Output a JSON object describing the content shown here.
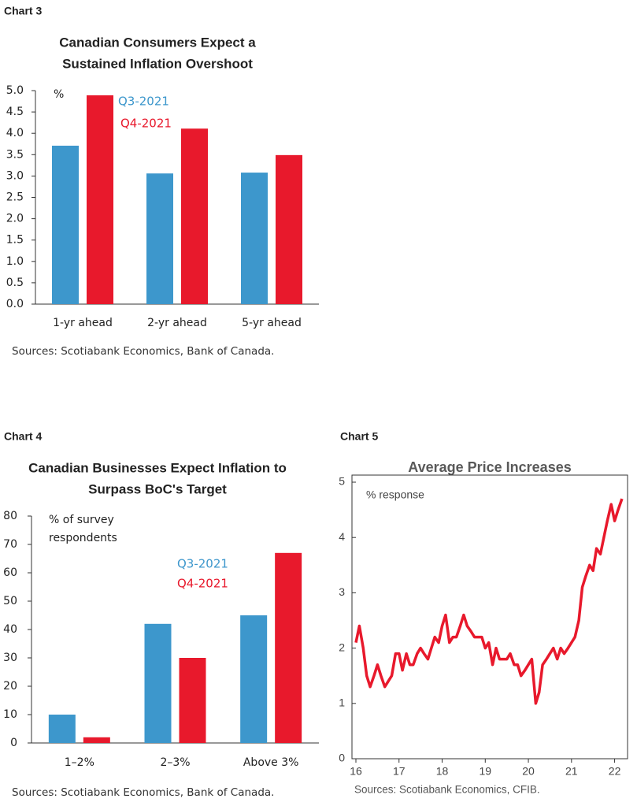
{
  "chart_data": [
    {
      "type": "bar",
      "label": "Chart 3",
      "title": [
        "Canadian Consumers Expect a",
        "Sustained Inflation Overshoot"
      ],
      "ylabel": [
        "%"
      ],
      "categories": [
        "1-yr ahead",
        "2-yr ahead",
        "5-yr ahead"
      ],
      "series": [
        {
          "name": "Q3-2021",
          "color": "#3d97cc",
          "values": [
            3.71,
            3.06,
            3.08
          ]
        },
        {
          "name": "Q4-2021",
          "color": "#e8192c",
          "values": [
            4.89,
            4.11,
            3.49
          ]
        }
      ],
      "ylim": [
        0,
        5
      ],
      "yticks": [
        {
          "value": 0,
          "label": "0.0"
        },
        0.5,
        {
          "value": 1,
          "label": "1.0"
        },
        1.5,
        {
          "value": 2,
          "label": "2.0"
        },
        2.5,
        {
          "value": 3,
          "label": "3.0"
        },
        3.5,
        {
          "value": 4,
          "label": "4.0"
        },
        4.5,
        {
          "value": 5,
          "label": "5.0"
        }
      ],
      "source": "Sources: Scotiabank Economics, Bank of Canada."
    },
    {
      "type": "bar",
      "label": "Chart 4",
      "title": [
        "Canadian Businesses Expect Inflation to",
        "Surpass BoC's Target"
      ],
      "ylabel": [
        "% of survey",
        "respondents"
      ],
      "categories": [
        "1–2%",
        "2–3%",
        "Above 3%"
      ],
      "series": [
        {
          "name": "Q3-2021",
          "color": "#3d97cc",
          "values": [
            10,
            42,
            45
          ]
        },
        {
          "name": "Q4-2021",
          "color": "#e8192c",
          "values": [
            2,
            30,
            67
          ]
        }
      ],
      "ylim": [
        0,
        80
      ],
      "yticks": [
        0,
        10,
        20,
        30,
        40,
        50,
        60,
        70,
        80
      ],
      "source": "Sources: Scotiabank Economics, Bank of Canada."
    },
    {
      "type": "line",
      "label": "Chart 5",
      "title": [
        "Average Price Increases"
      ],
      "ylabel": [
        "% response"
      ],
      "x": [
        16.0,
        16.08,
        16.17,
        16.25,
        16.33,
        16.42,
        16.5,
        16.58,
        16.67,
        16.75,
        16.83,
        16.92,
        17.0,
        17.08,
        17.17,
        17.25,
        17.33,
        17.42,
        17.5,
        17.58,
        17.67,
        17.75,
        17.83,
        17.92,
        18.0,
        18.08,
        18.17,
        18.25,
        18.33,
        18.42,
        18.5,
        18.58,
        18.67,
        18.75,
        18.83,
        18.92,
        19.0,
        19.08,
        19.17,
        19.25,
        19.33,
        19.42,
        19.5,
        19.58,
        19.67,
        19.75,
        19.83,
        19.92,
        20.0,
        20.08,
        20.17,
        20.25,
        20.33,
        20.42,
        20.5,
        20.58,
        20.67,
        20.75,
        20.83,
        20.92,
        21.0,
        21.08,
        21.17,
        21.25,
        21.33,
        21.42,
        21.5,
        21.58,
        21.67,
        21.75,
        21.83,
        21.92,
        22.0,
        22.08,
        22.17
      ],
      "series": [
        {
          "name": "Average price increases",
          "color": "#e8192c",
          "values": [
            2.1,
            2.4,
            2.0,
            1.5,
            1.3,
            1.5,
            1.7,
            1.5,
            1.3,
            1.4,
            1.5,
            1.9,
            1.9,
            1.6,
            1.9,
            1.7,
            1.7,
            1.9,
            2.0,
            1.9,
            1.8,
            2.0,
            2.2,
            2.1,
            2.4,
            2.6,
            2.1,
            2.2,
            2.2,
            2.4,
            2.6,
            2.4,
            2.3,
            2.2,
            2.2,
            2.2,
            2.0,
            2.1,
            1.7,
            2.0,
            1.8,
            1.8,
            1.8,
            1.9,
            1.7,
            1.7,
            1.5,
            1.6,
            1.7,
            1.8,
            1.0,
            1.2,
            1.7,
            1.8,
            1.9,
            2.0,
            1.8,
            2.0,
            1.9,
            2.0,
            2.1,
            2.2,
            2.5,
            3.1,
            3.3,
            3.5,
            3.4,
            3.8,
            3.7,
            4.0,
            4.3,
            4.6,
            4.3,
            4.5,
            4.7
          ]
        }
      ],
      "xlim": [
        16,
        22.3
      ],
      "xticks": [
        16,
        17,
        18,
        19,
        20,
        21,
        22
      ],
      "ylim": [
        0,
        5
      ],
      "yticks": [
        0,
        1,
        2,
        3,
        4,
        5
      ],
      "source": "Sources: Scotiabank Economics, CFIB."
    }
  ]
}
